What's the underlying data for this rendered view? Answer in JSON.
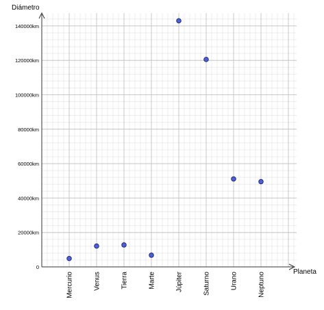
{
  "chart_data": {
    "type": "scatter",
    "title": "",
    "xlabel": "Planeta",
    "ylabel": "Diámetro",
    "categories": [
      "Mercurio",
      "Venus",
      "Tierra",
      "Marte",
      "Júpiter",
      "Saturno",
      "Urano",
      "Neptuno"
    ],
    "series": [
      {
        "values": [
          4879,
          12104,
          12756,
          6792,
          142984,
          120536,
          51118,
          49528
        ]
      }
    ],
    "ylim": [
      0,
      150000
    ],
    "y_tick_values": [
      0,
      20000,
      40000,
      60000,
      80000,
      100000,
      120000,
      140000
    ],
    "y_tick_labels": [
      "0",
      "20000km",
      "40000km",
      "60000km",
      "80000km",
      "100000km",
      "120000km",
      "140000km"
    ],
    "grid": true,
    "legend": "none",
    "colors": {
      "marker_fill": "#4c5fd6",
      "marker_stroke": "#1a237e",
      "grid_major": "#c8c8c8",
      "grid_minor": "#ececec",
      "axis": "#333333"
    }
  }
}
